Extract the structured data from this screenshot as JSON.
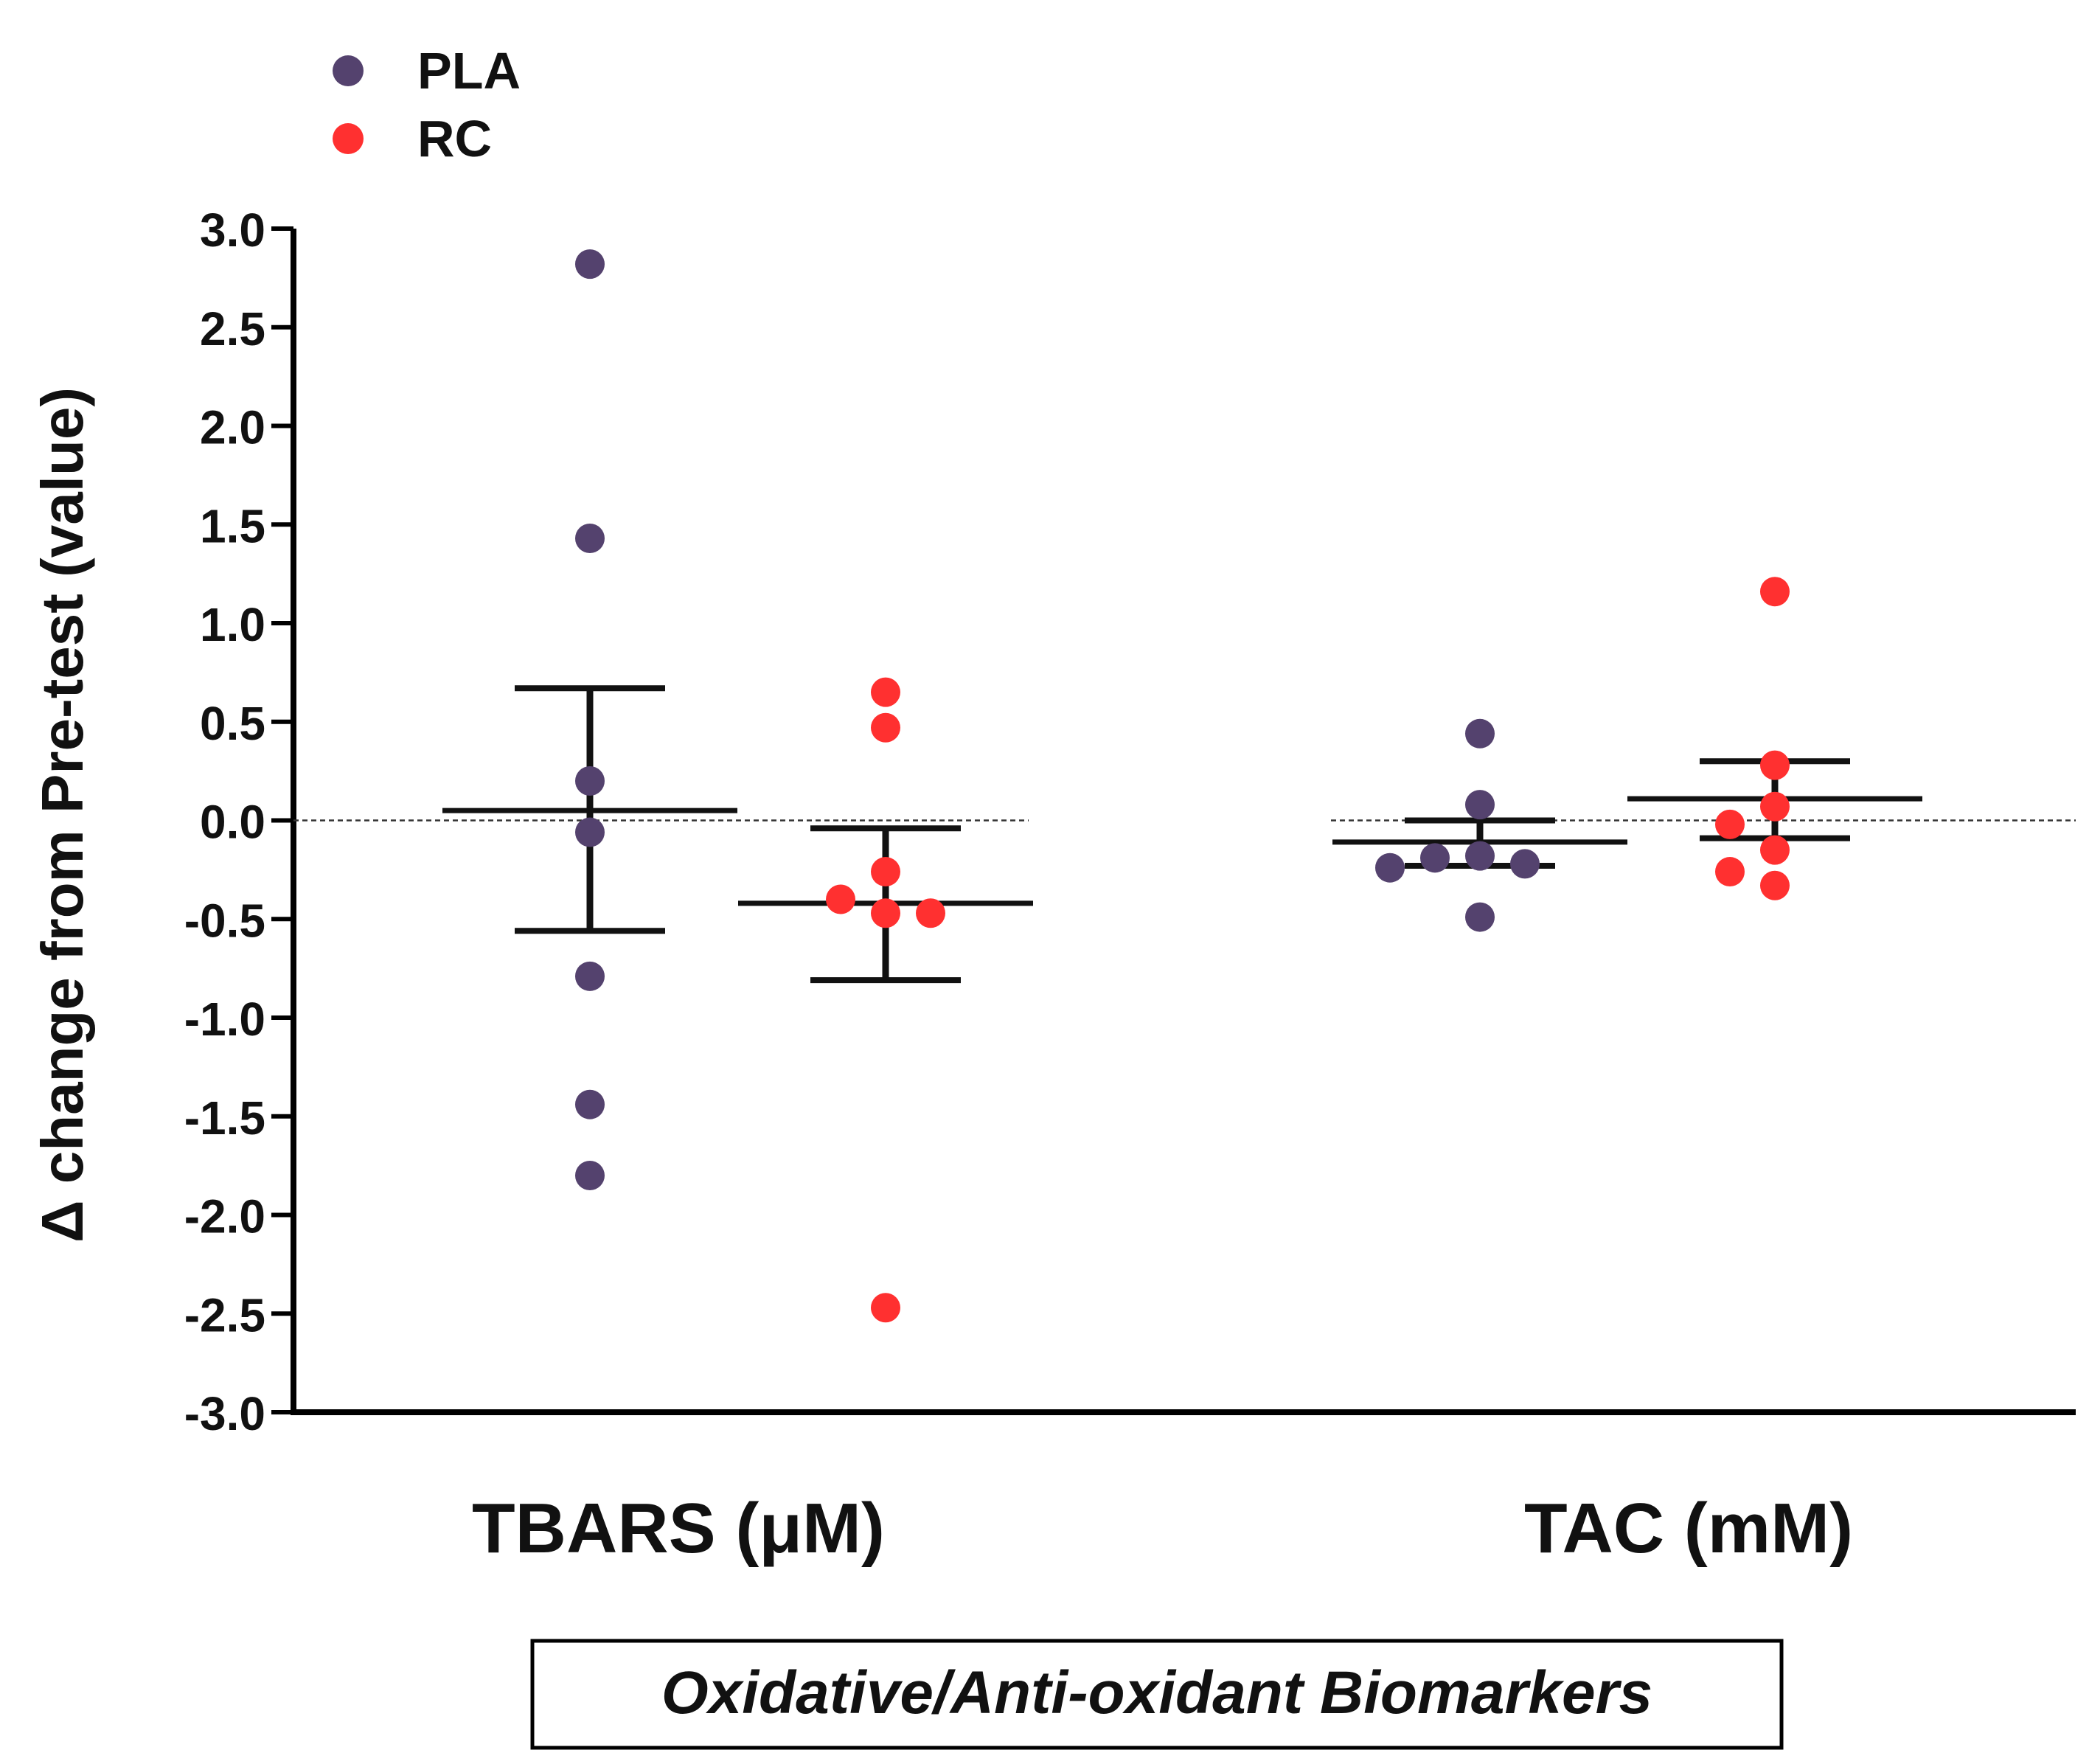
{
  "chart_data": {
    "type": "scatter",
    "title": "",
    "ylabel": "Δ change from Pre-test (value)",
    "xlabel": "Oxidative/Anti-oxidant Biomarkers",
    "ylim": [
      -3.0,
      3.0
    ],
    "yticks": [
      "3.0",
      "2.5",
      "2.0",
      "1.5",
      "1.0",
      "0.5",
      "0.0",
      "-0.5",
      "-1.0",
      "-1.5",
      "-2.0",
      "-2.5",
      "-3.0"
    ],
    "ytick_values": [
      3.0,
      2.5,
      2.0,
      1.5,
      1.0,
      0.5,
      0.0,
      -0.5,
      -1.0,
      -1.5,
      -2.0,
      -2.5,
      -3.0
    ],
    "reference_line": 0.0,
    "categories": [
      "TBARS (μM)",
      "TAC (mM)"
    ],
    "legend": {
      "position": "top-left",
      "entries": [
        {
          "label": "PLA",
          "color": "#54426e"
        },
        {
          "label": "RC",
          "color": "#ff3030"
        }
      ]
    },
    "groups": [
      {
        "category": "TBARS (μM)",
        "series": [
          {
            "name": "PLA",
            "color": "#54426e",
            "values": [
              2.82,
              1.43,
              0.2,
              -0.06,
              -0.79,
              -1.44,
              -1.8
            ],
            "mean": 0.05,
            "sem_upper": 0.67,
            "sem_lower": -0.56
          },
          {
            "name": "RC",
            "color": "#ff3030",
            "values": [
              0.65,
              0.47,
              -0.26,
              -0.4,
              -0.47,
              -0.47,
              -2.47
            ],
            "mean": -0.42,
            "sem_upper": -0.04,
            "sem_lower": -0.81
          }
        ]
      },
      {
        "category": "TAC (mM)",
        "series": [
          {
            "name": "PLA",
            "color": "#54426e",
            "values": [
              0.44,
              0.08,
              -0.18,
              -0.19,
              -0.22,
              -0.24,
              -0.49
            ],
            "mean": -0.11,
            "sem_upper": 0.0,
            "sem_lower": -0.23
          },
          {
            "name": "RC",
            "color": "#ff3030",
            "values": [
              1.16,
              0.28,
              0.07,
              -0.02,
              -0.15,
              -0.26,
              -0.33
            ],
            "mean": 0.11,
            "sem_upper": 0.3,
            "sem_lower": -0.09
          }
        ]
      }
    ]
  }
}
